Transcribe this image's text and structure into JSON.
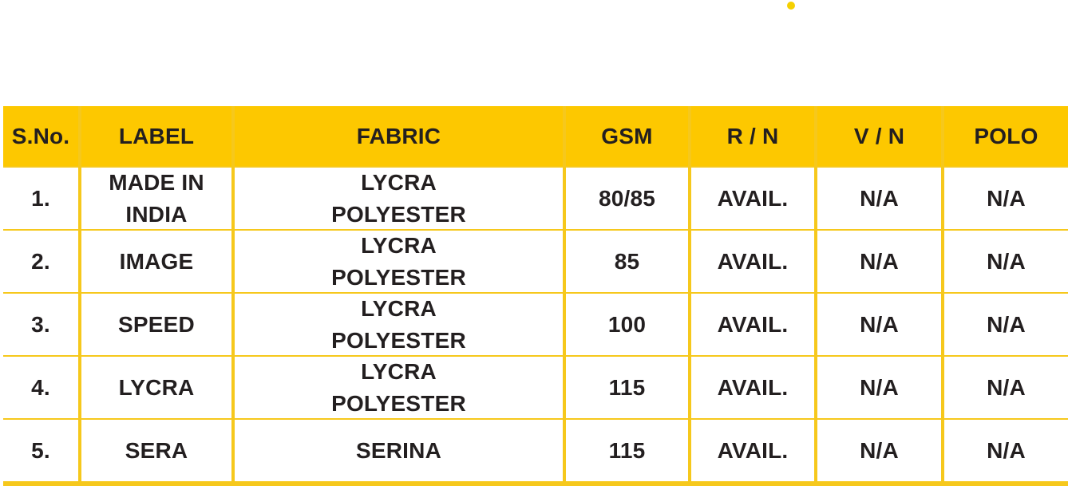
{
  "colors": {
    "header_bg": "#fdc800",
    "grid_line": "#f6c81c",
    "text": "#231f20",
    "accent_dot": "#f5d000"
  },
  "headers": [
    "S.No.",
    "LABEL",
    "FABRIC",
    "GSM",
    "R / N",
    "V / N",
    "POLO"
  ],
  "rows": [
    {
      "sno": "1.",
      "label": [
        "MADE IN",
        "INDIA"
      ],
      "fabric": [
        "LYCRA",
        "POLYESTER"
      ],
      "gsm": "80/85",
      "rn": "AVAIL.",
      "vn": "N/A",
      "polo": "N/A"
    },
    {
      "sno": "2.",
      "label": [
        "IMAGE"
      ],
      "fabric": [
        "LYCRA",
        "POLYESTER"
      ],
      "gsm": "85",
      "rn": "AVAIL.",
      "vn": "N/A",
      "polo": "N/A"
    },
    {
      "sno": "3.",
      "label": [
        "SPEED"
      ],
      "fabric": [
        "LYCRA",
        "POLYESTER"
      ],
      "gsm": "100",
      "rn": "AVAIL.",
      "vn": "N/A",
      "polo": "N/A"
    },
    {
      "sno": "4.",
      "label": [
        "LYCRA"
      ],
      "fabric": [
        "LYCRA",
        "POLYESTER"
      ],
      "gsm": "115",
      "rn": "AVAIL.",
      "vn": "N/A",
      "polo": "N/A"
    },
    {
      "sno": "5.",
      "label": [
        "SERA"
      ],
      "fabric": [
        "SERINA"
      ],
      "gsm": "115",
      "rn": "AVAIL.",
      "vn": "N/A",
      "polo": "N/A"
    }
  ]
}
